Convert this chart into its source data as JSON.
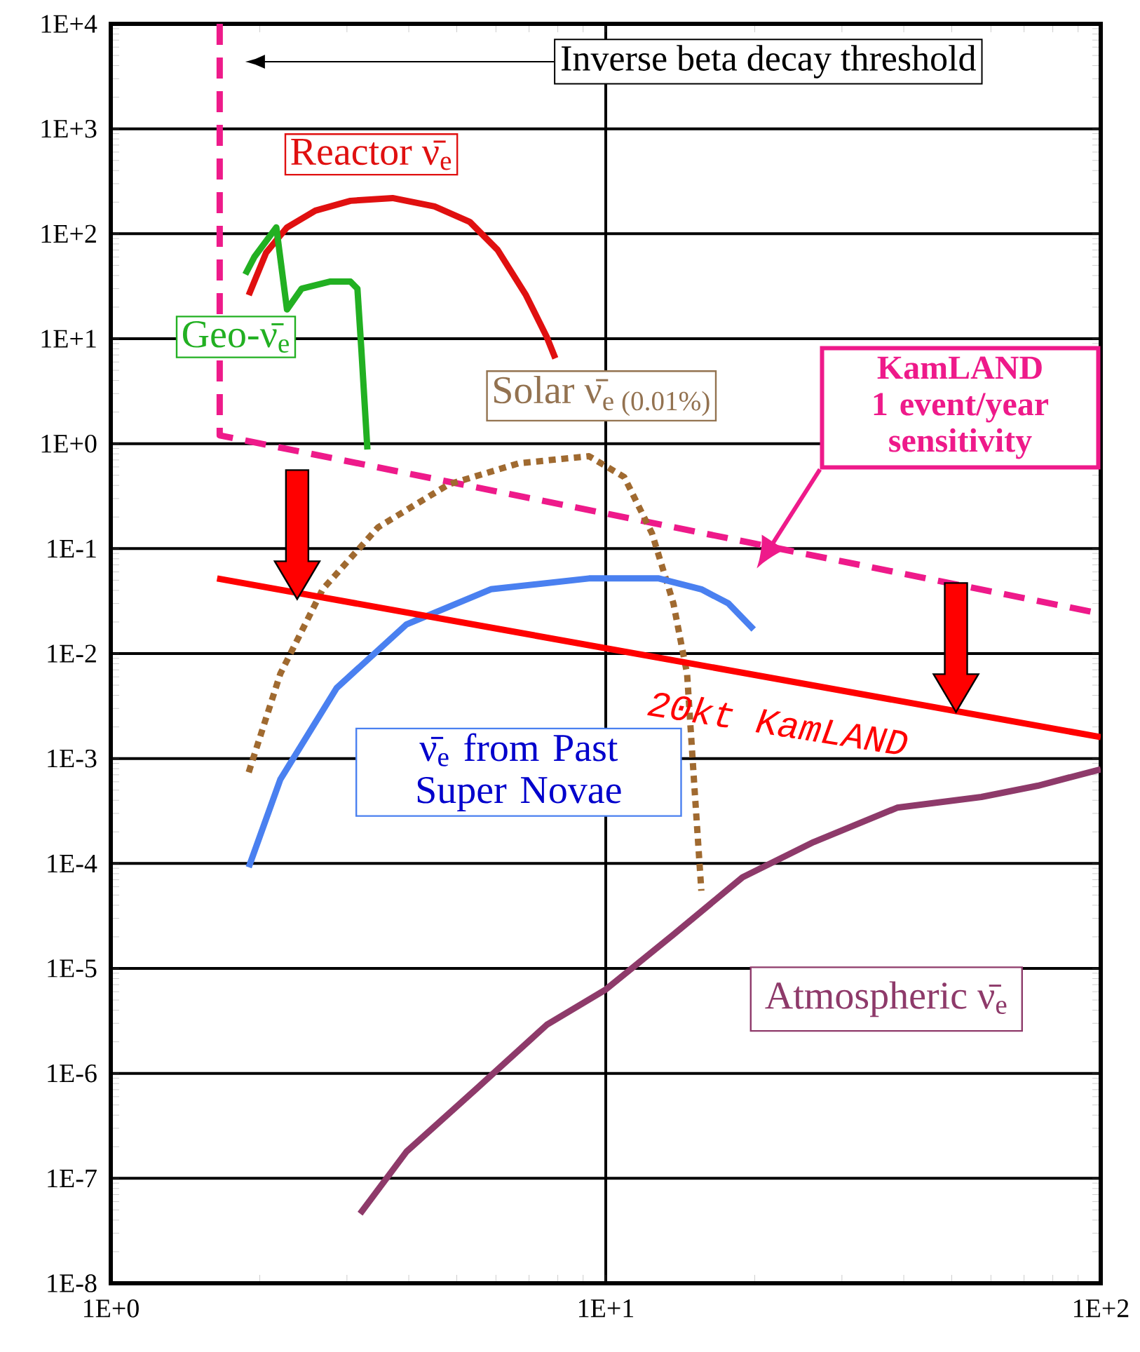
{
  "chart_data": {
    "type": "line",
    "log": "xy",
    "grid": true,
    "xlim": [
      1,
      100
    ],
    "ylim": [
      1e-08,
      10000
    ],
    "xticks": [
      {
        "value": 1,
        "label": "1E+0"
      },
      {
        "value": 10,
        "label": "1E+1"
      },
      {
        "value": 100,
        "label": "1E+2"
      }
    ],
    "yticks": [
      {
        "value": 1e-08,
        "label": "1E-8"
      },
      {
        "value": 1e-07,
        "label": "1E-7"
      },
      {
        "value": 1e-06,
        "label": "1E-6"
      },
      {
        "value": 1e-05,
        "label": "1E-5"
      },
      {
        "value": 0.0001,
        "label": "1E-4"
      },
      {
        "value": 0.001,
        "label": "1E-3"
      },
      {
        "value": 0.01,
        "label": "1E-2"
      },
      {
        "value": 0.1,
        "label": "1E-1"
      },
      {
        "value": 1,
        "label": "1E+0"
      },
      {
        "value": 10,
        "label": "1E+1"
      },
      {
        "value": 100,
        "label": "1E+2"
      },
      {
        "value": 1000,
        "label": "1E+3"
      },
      {
        "value": 10000,
        "label": "1E+4"
      }
    ],
    "annotations": [
      "Inverse beta decay threshold"
    ],
    "series": [
      {
        "name": "KamLAND 1 event/year sensitivity",
        "color": "#ee1a8a",
        "line_style": "dashed",
        "x": [
          1.66,
          1.66,
          100
        ],
        "values": [
          10000,
          1.2,
          0.024
        ]
      },
      {
        "name": "Reactor ν̄$_{e}$",
        "color": "#e01010",
        "line_style": "solid",
        "x": [
          1.9,
          2.06,
          2.27,
          2.59,
          3.05,
          3.71,
          4.51,
          5.31,
          6.05,
          6.9,
          7.6,
          7.91
        ],
        "values": [
          26,
          66,
          115,
          166,
          206,
          219,
          182,
          130,
          70,
          26,
          10.4,
          6.5
        ]
      },
      {
        "name": "Geo-ν̄$_{e}$",
        "color": "#22b022",
        "line_style": "solid",
        "x": [
          1.87,
          1.95,
          2.16,
          2.27,
          2.43,
          2.77,
          3.05,
          3.15,
          3.21,
          3.3
        ],
        "values": [
          41,
          60,
          115,
          19,
          30,
          35,
          35,
          30,
          7.6,
          0.88
        ]
      },
      {
        "name": "Solar ν̄$_{e (0.01%)}$",
        "color": "#a06a30",
        "line_style": "dotted",
        "x": [
          1.9,
          2.2,
          2.68,
          3.47,
          4.82,
          6.67,
          9.25,
          10.9,
          12.4,
          13.7,
          14.6,
          15.1,
          15.6
        ],
        "values": [
          0.00074,
          0.0064,
          0.041,
          0.16,
          0.41,
          0.65,
          0.76,
          0.48,
          0.14,
          0.03,
          0.0064,
          0.00055,
          5.5e-05
        ]
      },
      {
        "name": "ν̄$_{e}$ from Past Super Novae",
        "color": "#4a80f0",
        "line_style": "solid",
        "x": [
          1.9,
          2.2,
          2.86,
          3.96,
          5.86,
          9.25,
          12.8,
          15.6,
          17.7,
          19.9
        ],
        "values": [
          9.2e-05,
          0.00063,
          0.0047,
          0.019,
          0.041,
          0.052,
          0.052,
          0.041,
          0.03,
          0.017
        ]
      },
      {
        "name": "Atmospheric ν̄$_{e}$",
        "color": "#8e3a6a",
        "line_style": "solid",
        "x": [
          3.19,
          3.96,
          5.49,
          7.6,
          10,
          13.7,
          18.9,
          26.3,
          38.8,
          57.4,
          74.6,
          100
        ],
        "values": [
          4.6e-08,
          1.8e-07,
          7.2e-07,
          2.9e-06,
          6.3e-06,
          2.1e-05,
          7.4e-05,
          0.00016,
          0.00034,
          0.00043,
          0.00055,
          0.00079
        ]
      },
      {
        "name": "20kt KamLAND",
        "color": "#ff0000",
        "line_style": "solid",
        "x": [
          1.64,
          100
        ],
        "values": [
          0.052,
          0.0016
        ]
      }
    ]
  }
}
